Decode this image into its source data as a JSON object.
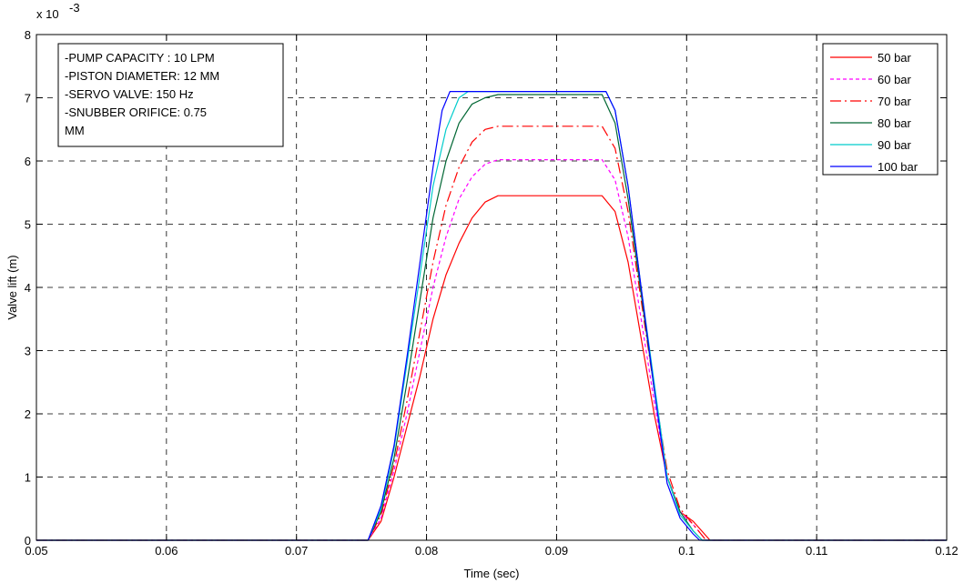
{
  "chart_data": {
    "type": "line",
    "title": "",
    "xlabel": "Time (sec)",
    "ylabel": "Valve lift (m)",
    "y_exponent_label": "x 10",
    "y_exponent_power": "-3",
    "xlim": [
      0.05,
      0.12
    ],
    "ylim": [
      0,
      8
    ],
    "grid": true,
    "legend_position": "top-right",
    "x_ticks": [
      0.05,
      0.06,
      0.07,
      0.08,
      0.09,
      0.1,
      0.11,
      0.12
    ],
    "x_tick_labels": [
      "0.05",
      "0.06",
      "0.07",
      "0.08",
      "0.09",
      "0.1",
      "0.11",
      "0.12"
    ],
    "y_ticks": [
      0,
      1,
      2,
      3,
      4,
      5,
      6,
      7,
      8
    ],
    "y_tick_labels": [
      "0",
      "1",
      "2",
      "3",
      "4",
      "5",
      "6",
      "7",
      "8"
    ],
    "annotation_lines": [
      "-PUMP CAPACITY : 10 LPM",
      "-PISTON DIAMETER: 12 MM",
      "-SERVO VALVE: 150 Hz",
      "-SNUBBER ORIFICE: 0.75",
      "MM"
    ],
    "series": [
      {
        "name": "50 bar",
        "color": "#ff0000",
        "dash": "solid",
        "x": [
          0.05,
          0.0755,
          0.0765,
          0.0775,
          0.0785,
          0.0795,
          0.0805,
          0.0815,
          0.0825,
          0.0835,
          0.0845,
          0.0855,
          0.0935,
          0.0945,
          0.0955,
          0.0965,
          0.0975,
          0.0985,
          0.0995,
          0.1005,
          0.1018,
          0.12
        ],
        "y": [
          0,
          0,
          0.3,
          1.0,
          1.8,
          2.6,
          3.5,
          4.2,
          4.7,
          5.1,
          5.35,
          5.45,
          5.45,
          5.2,
          4.4,
          3.2,
          2.0,
          1.0,
          0.45,
          0.3,
          0,
          0
        ]
      },
      {
        "name": "60 bar",
        "color": "#ff00ff",
        "dash": "dashed",
        "x": [
          0.05,
          0.0755,
          0.0765,
          0.0775,
          0.0785,
          0.0795,
          0.0805,
          0.0815,
          0.0825,
          0.0835,
          0.0845,
          0.0855,
          0.0935,
          0.0945,
          0.0955,
          0.0965,
          0.0975,
          0.0985,
          0.0995,
          0.1005,
          0.1015,
          0.12
        ],
        "y": [
          0,
          0,
          0.35,
          1.1,
          2.0,
          3.0,
          4.0,
          4.8,
          5.4,
          5.75,
          5.95,
          6.02,
          6.02,
          5.7,
          4.8,
          3.5,
          2.2,
          1.0,
          0.45,
          0.25,
          0,
          0
        ]
      },
      {
        "name": "70 bar",
        "color": "#ff0000",
        "dash": "dashdot",
        "x": [
          0.05,
          0.0755,
          0.0765,
          0.0775,
          0.0785,
          0.0795,
          0.0805,
          0.0815,
          0.0825,
          0.0835,
          0.0845,
          0.0855,
          0.0935,
          0.0945,
          0.0955,
          0.0965,
          0.0975,
          0.0985,
          0.0995,
          0.1005,
          0.1015,
          0.12
        ],
        "y": [
          0,
          0,
          0.4,
          1.2,
          2.2,
          3.3,
          4.4,
          5.3,
          5.9,
          6.3,
          6.5,
          6.55,
          6.55,
          6.2,
          5.2,
          3.8,
          2.4,
          1.1,
          0.5,
          0.25,
          0,
          0
        ]
      },
      {
        "name": "80 bar",
        "color": "#006633",
        "dash": "solid",
        "x": [
          0.05,
          0.0755,
          0.0765,
          0.0775,
          0.0785,
          0.0795,
          0.0805,
          0.0815,
          0.0825,
          0.0835,
          0.0845,
          0.0855,
          0.0935,
          0.0945,
          0.0955,
          0.0965,
          0.0975,
          0.0985,
          0.0995,
          0.1005,
          0.1012,
          0.12
        ],
        "y": [
          0,
          0,
          0.45,
          1.3,
          2.5,
          3.8,
          5.1,
          6.0,
          6.6,
          6.9,
          7.0,
          7.05,
          7.05,
          6.6,
          5.4,
          3.9,
          2.4,
          1.0,
          0.45,
          0.15,
          0,
          0
        ]
      },
      {
        "name": "90 bar",
        "color": "#00cccc",
        "dash": "solid",
        "x": [
          0.05,
          0.0755,
          0.0765,
          0.0775,
          0.0785,
          0.0795,
          0.0805,
          0.0815,
          0.0825,
          0.0832,
          0.0938,
          0.0945,
          0.0955,
          0.0965,
          0.0975,
          0.0985,
          0.0995,
          0.1005,
          0.1012,
          0.12
        ],
        "y": [
          0,
          0,
          0.5,
          1.45,
          2.8,
          4.2,
          5.6,
          6.5,
          7.0,
          7.1,
          7.1,
          6.8,
          5.6,
          4.0,
          2.5,
          1.0,
          0.4,
          0.15,
          0,
          0
        ]
      },
      {
        "name": "100 bar",
        "color": "#0000ff",
        "dash": "solid",
        "x": [
          0.05,
          0.0755,
          0.0765,
          0.0775,
          0.0785,
          0.0795,
          0.0805,
          0.0812,
          0.0818,
          0.0938,
          0.0945,
          0.0955,
          0.0965,
          0.0975,
          0.0985,
          0.0995,
          0.1005,
          0.101,
          0.12
        ],
        "y": [
          0,
          0,
          0.55,
          1.5,
          2.9,
          4.4,
          5.9,
          6.8,
          7.1,
          7.1,
          6.8,
          5.6,
          4.0,
          2.4,
          0.9,
          0.35,
          0.1,
          0,
          0
        ]
      }
    ]
  }
}
